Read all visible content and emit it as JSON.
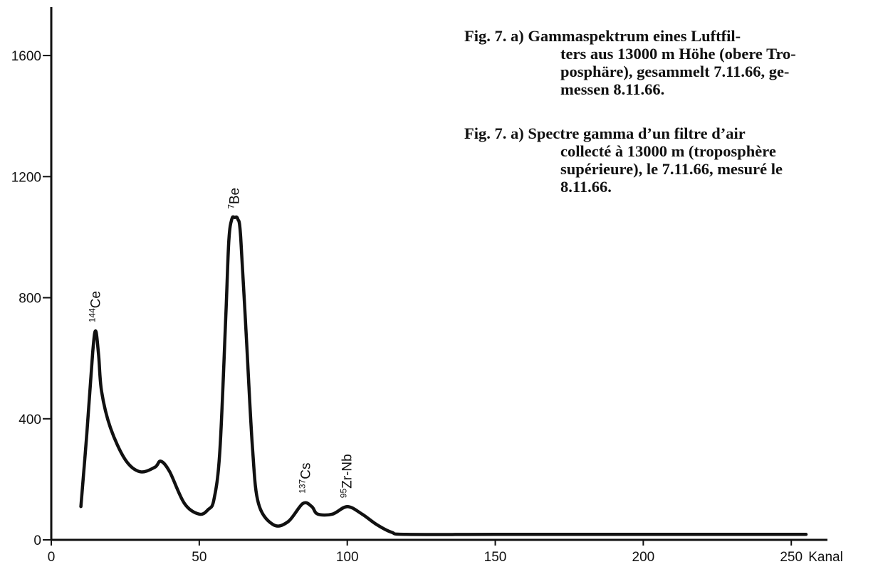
{
  "chart_data": {
    "type": "line",
    "xlabel": "Kanal",
    "ylabel": "",
    "xlim": [
      0,
      255
    ],
    "ylim": [
      0,
      1760
    ],
    "grid": false,
    "legend": "none",
    "x_ticks": [
      "0",
      "50",
      "100",
      "150",
      "200",
      "250"
    ],
    "y_ticks": [
      "0",
      "400",
      "800",
      "1200",
      "1600"
    ],
    "series": [
      {
        "x": [
          10,
          12,
          14,
          15,
          16,
          17,
          20,
          25,
          30,
          35,
          37,
          40,
          45,
          50,
          53,
          55,
          57,
          59,
          60,
          61,
          62,
          63,
          64,
          66,
          68,
          70,
          75,
          80,
          85,
          88,
          90,
          95,
          100,
          105,
          110,
          115,
          120,
          150,
          200,
          255
        ],
        "y": [
          110,
          350,
          620,
          690,
          610,
          490,
          370,
          265,
          225,
          240,
          260,
          225,
          120,
          85,
          100,
          135,
          300,
          750,
          990,
          1060,
          1065,
          1060,
          1000,
          650,
          300,
          120,
          50,
          60,
          120,
          110,
          85,
          85,
          110,
          85,
          50,
          25,
          18,
          18,
          18,
          18
        ]
      }
    ],
    "annotations": [
      {
        "label": "144Ce",
        "mass": "144",
        "element": "Ce",
        "x": 15,
        "y": 690
      },
      {
        "label": "7Be",
        "mass": "7",
        "element": "Be",
        "x": 62,
        "y": 1065
      },
      {
        "label": "137Cs",
        "mass": "137",
        "element": "Cs",
        "x": 86,
        "y": 125
      },
      {
        "label": "95Zr-Nb",
        "mass": "95",
        "element": "Zr-Nb",
        "x": 100,
        "y": 110
      }
    ]
  },
  "caption": {
    "de": [
      "Fig. 7. a)  Gammaspektrum eines Luftfil-",
      "ters aus 13000 m Höhe (obere Tro-",
      "posphäre), gesammelt 7.11.66, ge-",
      "messen 8.11.66."
    ],
    "fr": [
      "Fig. 7. a) Spectre gamma d’un filtre d’air",
      "collecté  à  13000 m  (troposphère",
      "supérieure), le 7.11.66, mesuré le",
      "8.11.66."
    ]
  },
  "colors": {
    "ink": "#111111",
    "background": "#ffffff"
  }
}
